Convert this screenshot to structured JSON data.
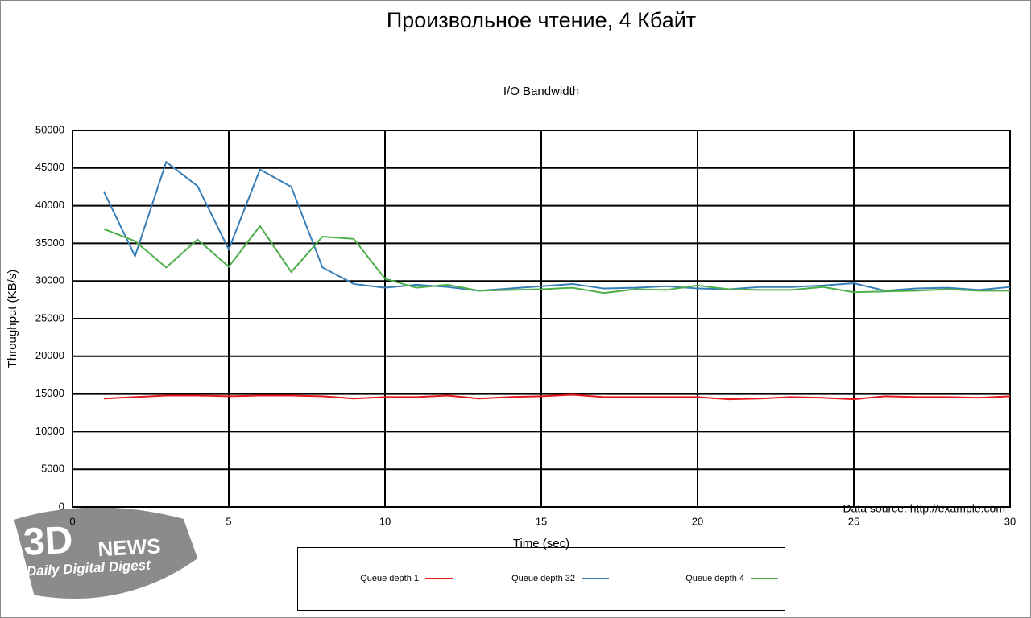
{
  "chart_data": {
    "type": "line",
    "title": "Произвольное чтение, 4 Кбайт",
    "subtitle": "I/O Bandwidth",
    "x_label": "Time (sec)",
    "y_label": "Throughput (KB/s)",
    "annotation": "Data source: http://example.com",
    "logo": {
      "mark": "3D",
      "word": "NEWS",
      "tagline": "Daily Digital Digest"
    },
    "x": [
      1,
      2,
      3,
      4,
      5,
      6,
      7,
      8,
      9,
      10,
      11,
      12,
      13,
      14,
      15,
      16,
      17,
      18,
      19,
      20,
      21,
      22,
      23,
      24,
      25,
      26,
      27,
      28,
      29,
      30
    ],
    "series": [
      {
        "name": "Queue depth 1",
        "color": "#e41a1c",
        "values": [
          14400,
          14600,
          14800,
          14800,
          14700,
          14800,
          14800,
          14700,
          14400,
          14600,
          14600,
          14800,
          14400,
          14600,
          14700,
          14900,
          14600,
          14600,
          14600,
          14600,
          14300,
          14400,
          14600,
          14500,
          14300,
          14700,
          14600,
          14600,
          14500,
          14700
        ]
      },
      {
        "name": "Queue depth 32",
        "color": "#377eb8",
        "values": [
          41900,
          33300,
          45800,
          42600,
          34200,
          44800,
          42500,
          31800,
          29600,
          29100,
          29500,
          29200,
          28700,
          29000,
          29300,
          29600,
          29000,
          29100,
          29300,
          29000,
          28900,
          29200,
          29200,
          29400,
          29700,
          28700,
          29000,
          29100,
          28800,
          29200
        ]
      },
      {
        "name": "Queue depth 4",
        "color": "#4daf4a",
        "values": [
          36900,
          35300,
          31800,
          35500,
          31900,
          37300,
          31200,
          35900,
          35600,
          30300,
          29100,
          29500,
          28700,
          28800,
          28900,
          29100,
          28400,
          28900,
          28800,
          29400,
          28900,
          28800,
          28800,
          29200,
          28500,
          28600,
          28700,
          28900,
          28700,
          28700
        ]
      }
    ],
    "xlim": [
      0,
      30
    ],
    "xticks": [
      0,
      5,
      10,
      15,
      20,
      25,
      30
    ],
    "ylim": [
      0,
      50000
    ],
    "yticks": [
      0,
      5000,
      10000,
      15000,
      20000,
      25000,
      30000,
      35000,
      40000,
      45000,
      50000
    ],
    "grid": true,
    "legend": "bottom"
  }
}
